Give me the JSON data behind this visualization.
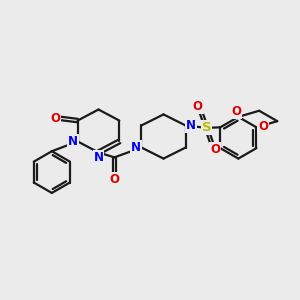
{
  "background_color": "#ebebeb",
  "bond_color": "#1a1a1a",
  "nitrogen_color": "#0000ee",
  "oxygen_color": "#dd0000",
  "sulfur_color": "#bbbb00",
  "line_width": 1.6,
  "figsize": [
    3.0,
    3.0
  ],
  "dpi": 100,
  "xlim": [
    0,
    12
  ],
  "ylim": [
    0,
    12
  ]
}
